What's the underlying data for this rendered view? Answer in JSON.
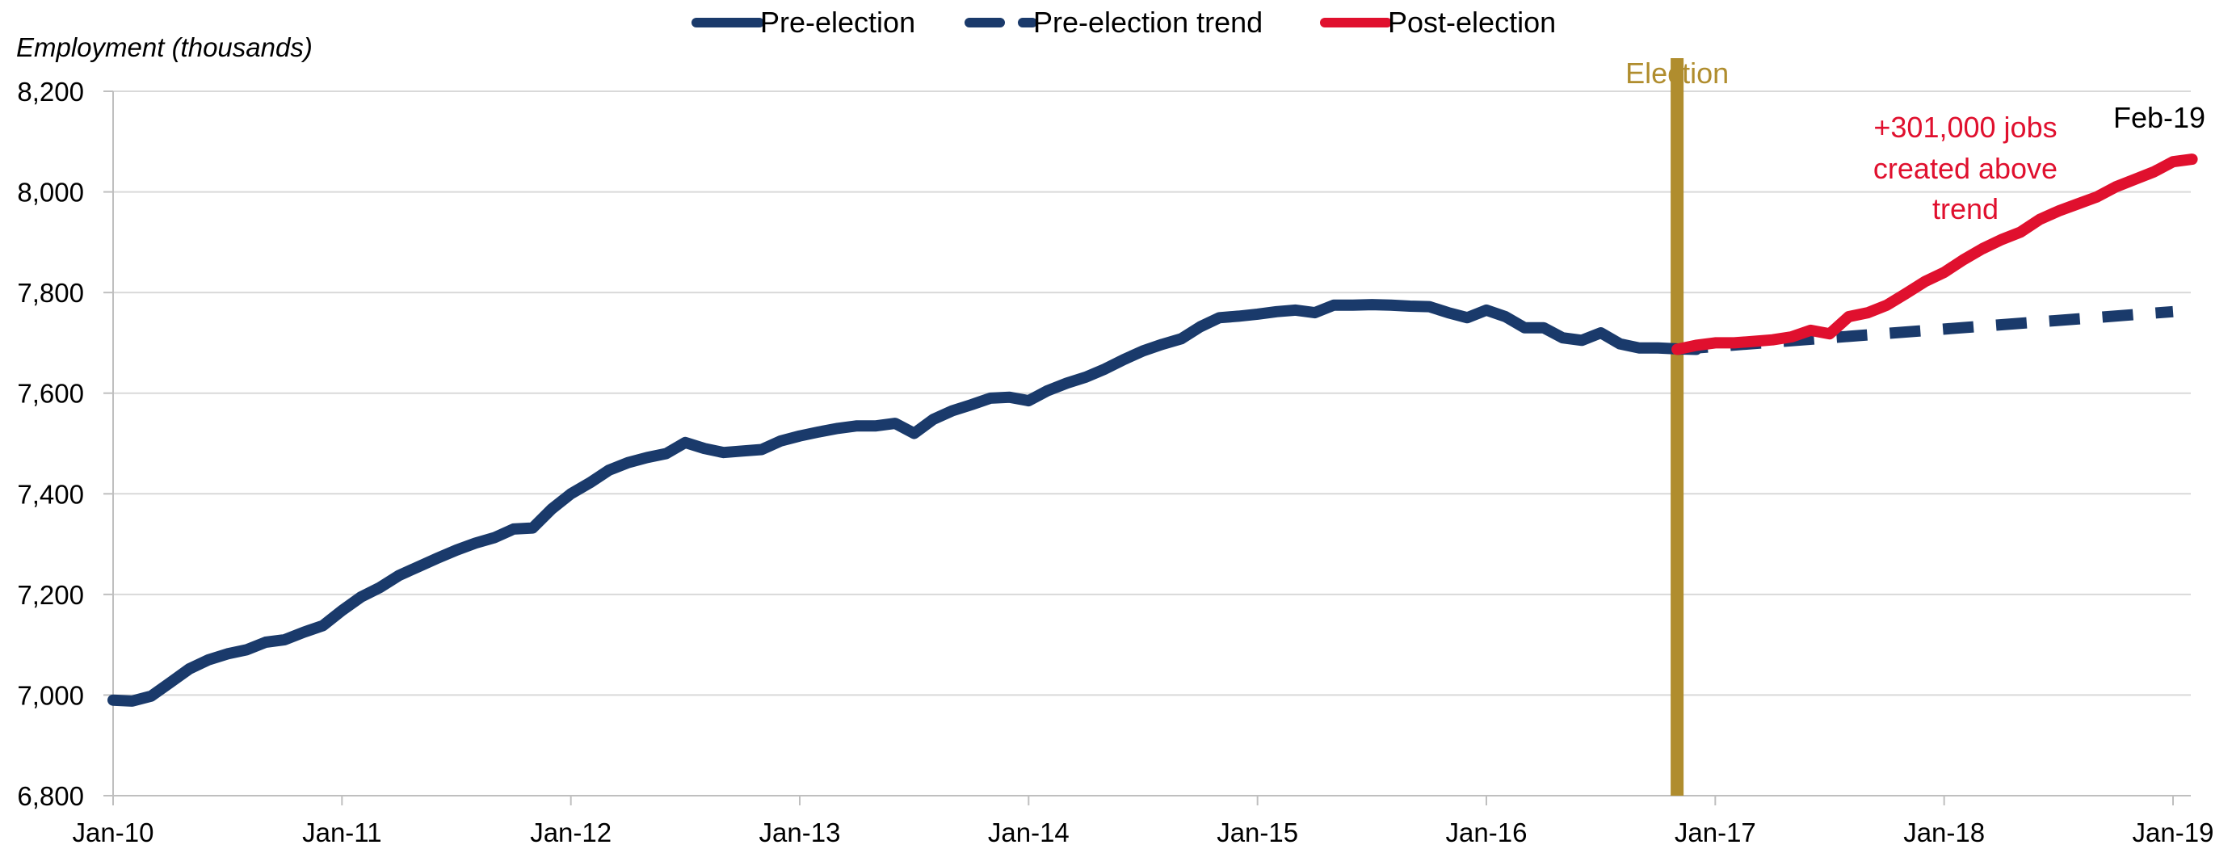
{
  "chart_data": {
    "type": "line",
    "ylabel": "Employment (thousands)",
    "ylim": [
      6800,
      8200
    ],
    "yticks": [
      6800,
      7000,
      7200,
      7400,
      7600,
      7800,
      8000,
      8200
    ],
    "ytick_labels": [
      "6,800",
      "7,000",
      "7,200",
      "7,400",
      "7,600",
      "7,800",
      "8,000",
      "8,200"
    ],
    "x_start": "Jan-10",
    "x_ticks": [
      "Jan-10",
      "Jan-11",
      "Jan-12",
      "Jan-13",
      "Jan-14",
      "Jan-15",
      "Jan-16",
      "Jan-17",
      "Jan-18",
      "Jan-19"
    ],
    "legend_position": "top-center",
    "colors": {
      "pre": "#1a3a6b",
      "trend": "#1a3a6b",
      "post": "#e0102e",
      "election": "#b08d2e"
    },
    "series": [
      {
        "name": "Pre-election",
        "style": "solid",
        "start": "Jan-10",
        "values": [
          6990,
          6988,
          6998,
          7025,
          7052,
          7070,
          7082,
          7090,
          7105,
          7110,
          7125,
          7138,
          7168,
          7195,
          7214,
          7238,
          7255,
          7272,
          7288,
          7302,
          7313,
          7330,
          7332,
          7370,
          7400,
          7422,
          7447,
          7462,
          7472,
          7480,
          7502,
          7490,
          7482,
          7485,
          7488,
          7505,
          7515,
          7523,
          7530,
          7535,
          7535,
          7540,
          7520,
          7548,
          7565,
          7577,
          7590,
          7592,
          7585,
          7605,
          7620,
          7632,
          7648,
          7667,
          7684,
          7697,
          7708,
          7732,
          7750,
          7753,
          7757,
          7762,
          7765,
          7760,
          7775,
          7775,
          7776,
          7775,
          7773,
          7772,
          7760,
          7750,
          7765,
          7752,
          7730,
          7730,
          7710,
          7705,
          7720,
          7698,
          7690,
          7690,
          7688,
          7687
        ]
      },
      {
        "name": "Pre-election trend",
        "style": "dashed",
        "start": "Nov-16",
        "end": "Jan-19",
        "values_start_end": [
          7687,
          7762
        ]
      },
      {
        "name": "Post-election",
        "style": "solid",
        "start": "Nov-16",
        "values": [
          7687,
          7695,
          7700,
          7700,
          7703,
          7706,
          7712,
          7725,
          7718,
          7752,
          7760,
          7775,
          7798,
          7822,
          7840,
          7865,
          7887,
          7905,
          7920,
          7945,
          7962,
          7976,
          7990,
          8010,
          8025,
          8040,
          8060,
          8065
        ]
      }
    ],
    "annotations": {
      "election_label": "Election",
      "election_x": "Nov-16",
      "jobs_lines": [
        "+301,000 jobs",
        "created above",
        "trend"
      ],
      "end_label": "Feb-19"
    }
  }
}
